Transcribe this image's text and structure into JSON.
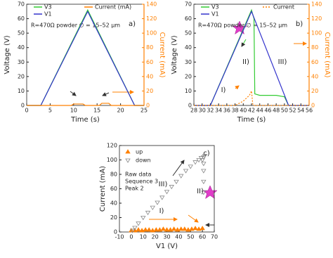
{
  "chart_data": [
    {
      "type": "line",
      "panel_label": "a)",
      "annotation": "R=470Ω  powder ∅ = 15–52 µm",
      "xlabel": "Time (s)",
      "ylabel": "Voltage (V)",
      "y2label": "Current (mA)",
      "xlim": [
        0,
        25
      ],
      "xticks": [
        0,
        5,
        10,
        15,
        20,
        25
      ],
      "ylim": [
        0,
        70
      ],
      "yticks": [
        0,
        10,
        20,
        30,
        40,
        50,
        60,
        70
      ],
      "y2lim": [
        0,
        140
      ],
      "y2ticks": [
        0,
        20,
        40,
        60,
        80,
        100,
        120,
        140
      ],
      "series": [
        {
          "name": "V3",
          "color": "#33cc33",
          "x": [
            0,
            3,
            13,
            23,
            25
          ],
          "values": [
            0,
            0,
            66,
            0,
            0
          ]
        },
        {
          "name": "V1",
          "color": "#3333cc",
          "x": [
            0,
            3,
            13,
            23,
            25
          ],
          "values": [
            0,
            0,
            65,
            0,
            0
          ]
        },
        {
          "name": "Current (mA)",
          "color": "#ff8000",
          "axis": "y2",
          "x": [
            0,
            9.5,
            10,
            12,
            12.5,
            15.5,
            16,
            17.5,
            18,
            25
          ],
          "values": [
            0,
            0,
            2,
            2,
            0,
            0,
            3,
            3,
            0,
            0
          ]
        }
      ]
    },
    {
      "type": "line",
      "panel_label": "b)",
      "annotation": "R=470Ω  powder ∅ = 15–52 µm",
      "phases": [
        "I)",
        "II)",
        "III)"
      ],
      "xlabel": "Time (s)",
      "ylabel": "Voltage (V)",
      "y2label": "Current (mA)",
      "xlim": [
        28,
        56
      ],
      "xticks": [
        28,
        30,
        32,
        34,
        36,
        38,
        40,
        42,
        44,
        46,
        48,
        50,
        52,
        54,
        56
      ],
      "ylim": [
        0,
        70
      ],
      "yticks": [
        0,
        10,
        20,
        30,
        40,
        50,
        60,
        70
      ],
      "y2lim": [
        0,
        140
      ],
      "y2ticks": [
        0,
        20,
        40,
        60,
        80,
        100,
        120,
        140
      ],
      "series": [
        {
          "name": "V3",
          "color": "#33cc33",
          "x": [
            28,
            32,
            42,
            42.6,
            42.8,
            44,
            48,
            50,
            51,
            56
          ],
          "values": [
            0,
            0,
            66,
            60,
            8,
            7,
            7,
            6,
            0,
            0
          ]
        },
        {
          "name": "V1",
          "color": "#3333cc",
          "x": [
            28,
            32,
            42,
            51,
            56
          ],
          "values": [
            0,
            0,
            65,
            0,
            0
          ]
        },
        {
          "name": "Current",
          "color": "#ff8000",
          "axis": "y2",
          "dash": true,
          "x": [
            28,
            38,
            40,
            41.5,
            42,
            42.3,
            42.5,
            46,
            51,
            56
          ],
          "values": [
            0,
            0,
            6,
            14,
            20,
            2,
            0,
            0,
            0,
            0
          ]
        }
      ]
    },
    {
      "type": "scatter",
      "panel_label": "c)",
      "notes": [
        "Raw data",
        "Sequence 3",
        "Peak 2"
      ],
      "phases": [
        "I)",
        "II)",
        "III)"
      ],
      "xlabel": "V1 (V)",
      "ylabel": "Current (mA)",
      "xlim": [
        -10,
        70
      ],
      "xticks": [
        -10,
        0,
        10,
        20,
        30,
        40,
        50,
        60,
        70
      ],
      "ylim": [
        0,
        120
      ],
      "yticks": [
        0,
        20,
        40,
        60,
        80,
        100,
        120
      ],
      "series": [
        {
          "name": "up",
          "color": "#ff8000",
          "marker": "triangle-up",
          "filled": true,
          "x": [
            0,
            3,
            6,
            9,
            12,
            15,
            18,
            21,
            24,
            27,
            30,
            33,
            36,
            39,
            42,
            45,
            48,
            51,
            54,
            57,
            60
          ],
          "values": [
            2,
            2,
            3,
            2,
            3,
            3,
            2,
            3,
            3,
            4,
            3,
            3,
            4,
            3,
            4,
            4,
            3,
            4,
            5,
            4,
            5
          ]
        },
        {
          "name": "down",
          "color": "#888888",
          "marker": "triangle-down",
          "filled": false,
          "x": [
            62,
            61,
            61,
            61,
            61,
            61,
            60,
            59,
            57,
            54,
            50,
            46,
            42,
            38,
            34,
            30,
            26,
            22,
            18,
            14,
            10,
            6,
            3,
            1
          ],
          "values": [
            106,
            104,
            95,
            85,
            70,
            55,
            100,
            103,
            100,
            97,
            91,
            85,
            78,
            70,
            63,
            56,
            48,
            41,
            34,
            27,
            20,
            12,
            6,
            2
          ]
        }
      ]
    }
  ]
}
